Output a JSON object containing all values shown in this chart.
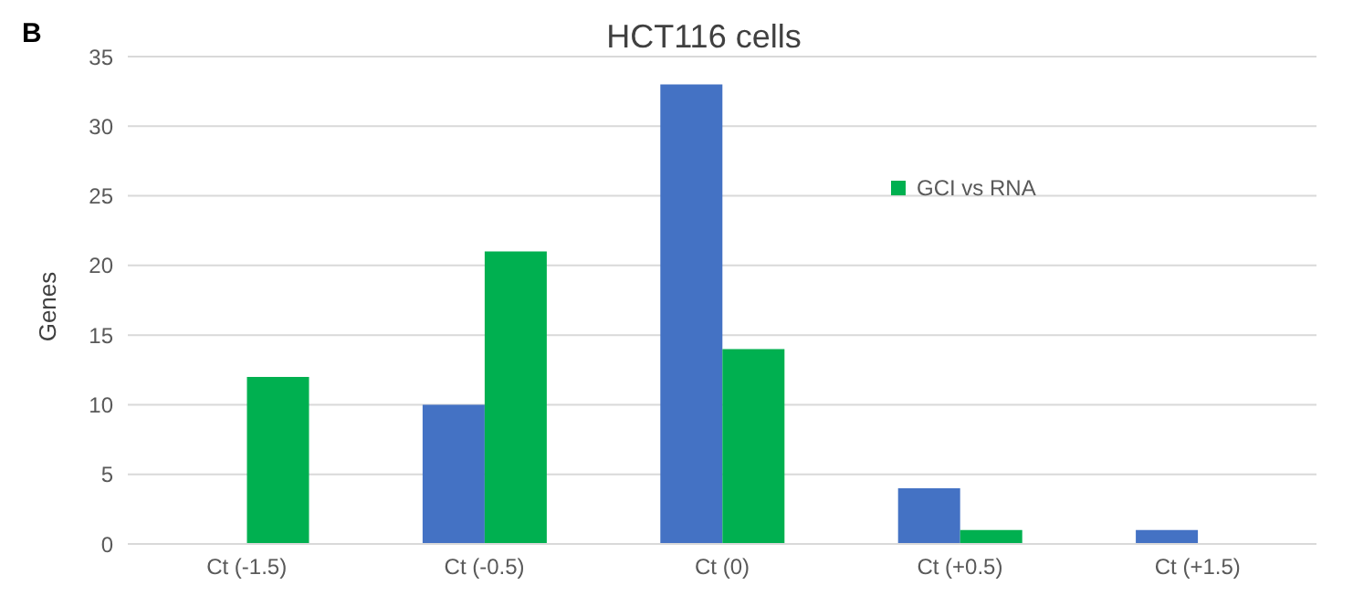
{
  "chart_data": {
    "type": "bar",
    "title": "HCT116 cells",
    "ylabel": "Genes",
    "annotations": [
      "B"
    ],
    "categories": [
      "Ct (-1.5)",
      "Ct (-0.5)",
      "Ct (0)",
      "Ct (+0.5)",
      "Ct (+1.5)"
    ],
    "series": [
      {
        "color": "#4472c4",
        "values": [
          0,
          10,
          33,
          4,
          1
        ]
      },
      {
        "name": "GCI vs RNA",
        "color": "#00b050",
        "values": [
          12,
          21,
          14,
          1,
          0
        ]
      }
    ],
    "ylim": [
      0,
      35
    ],
    "yticks": [
      0,
      5,
      10,
      15,
      20,
      25,
      30,
      35
    ],
    "grid": "y",
    "legend": "top right"
  }
}
